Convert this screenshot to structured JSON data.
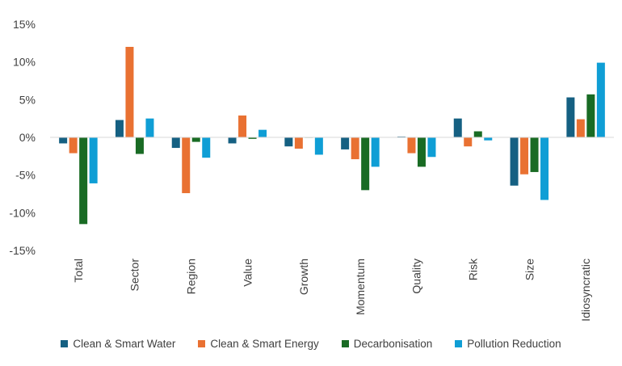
{
  "chart_data": {
    "type": "bar",
    "categories": [
      "Total",
      "Sector",
      "Region",
      "Value",
      "Growth",
      "Momentum",
      "Quality",
      "Risk",
      "Size",
      "Idiosyncratic"
    ],
    "series": [
      {
        "name": "Clean & Smart Water",
        "color": "#156082",
        "values": [
          -0.8,
          2.3,
          -1.4,
          -0.8,
          -1.2,
          -1.6,
          0.1,
          2.5,
          -6.4,
          5.3
        ]
      },
      {
        "name": "Clean & Smart Energy",
        "color": "#E97132",
        "values": [
          -2.1,
          12.0,
          -7.4,
          2.9,
          -1.5,
          -2.9,
          -2.1,
          -1.2,
          -4.9,
          2.4
        ]
      },
      {
        "name": "Decarbonisation",
        "color": "#196B24",
        "values": [
          -11.5,
          -2.2,
          -0.6,
          -0.2,
          0.0,
          -7.0,
          -3.9,
          0.8,
          -4.6,
          5.7
        ]
      },
      {
        "name": "Pollution Reduction",
        "color": "#0F9ED5",
        "values": [
          -6.1,
          2.5,
          -2.7,
          1.0,
          -2.3,
          -3.9,
          -2.6,
          -0.4,
          -8.3,
          9.9
        ]
      }
    ],
    "yticks": [
      "15%",
      "10%",
      "5%",
      "0%",
      "-5%",
      "-10%",
      "-15%"
    ],
    "ylim": [
      -15,
      15
    ],
    "title": "",
    "xlabel": "",
    "ylabel": "",
    "grid": false,
    "legend_position": "bottom"
  }
}
